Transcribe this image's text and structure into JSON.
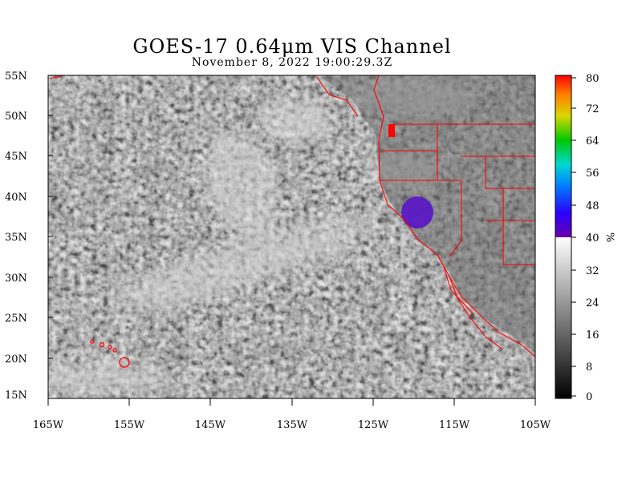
{
  "title": "GOES-17  0.64μm VIS Channel",
  "subtitle": "November  8,  2022 19:00:29.3Z",
  "map": {
    "projection": "cylindrical lat/lon",
    "lon_range": [
      -165,
      -105
    ],
    "lat_range": [
      15,
      55
    ],
    "lat_labels": [
      "55N",
      "50N",
      "45N",
      "40N",
      "35N",
      "30N",
      "25N",
      "20N",
      "15N"
    ],
    "lon_labels": [
      "165W",
      "155W",
      "145W",
      "135W",
      "125W",
      "115W",
      "105W"
    ],
    "boundary_color": "#ff0000"
  },
  "colorbar": {
    "unit": "%",
    "ticks": [
      "80",
      "72",
      "64",
      "56",
      "48",
      "40",
      "32",
      "24",
      "16",
      "8",
      "0"
    ],
    "color_threshold": 40
  }
}
